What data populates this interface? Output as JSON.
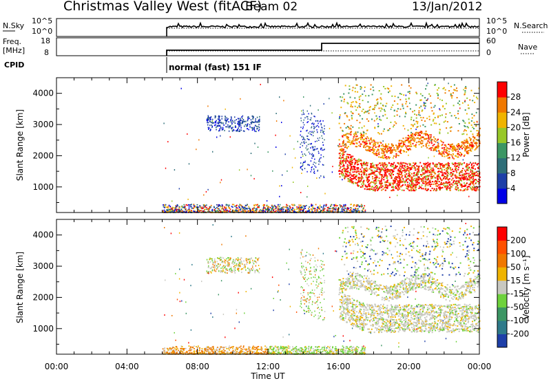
{
  "header": {
    "title": "Christmas Valley West (fitACF)",
    "beam": "Beam 02",
    "date": "13/Jan/2012"
  },
  "panels": {
    "nsky": {
      "left_label": "N.Sky",
      "left_ticks": [
        "10^5",
        "10^0"
      ],
      "right_ticks": [
        "10^5",
        "10^0"
      ],
      "right_label": "N.Search"
    },
    "freq": {
      "left_label_1": "Freq.",
      "left_label_2": "[MHz]",
      "left_ticks": [
        "18",
        "8"
      ],
      "right_ticks": [
        "60",
        "0"
      ],
      "right_label": "Nave"
    },
    "cpid": {
      "label": "CPID",
      "text": "normal (fast) 151 IF"
    }
  },
  "chart_data": [
    {
      "type": "heatmap",
      "name": "power",
      "ylabel": "Slant Range [km]",
      "yticks": [
        1000,
        2000,
        3000,
        4000
      ],
      "ylim": [
        180,
        4500
      ],
      "colorbar_label": "Power [dB]",
      "colorbar_ticks": [
        "28",
        "24",
        "20",
        "16",
        "12",
        "8",
        "4"
      ],
      "colors": [
        "#0000e6",
        "#1e3fa8",
        "#2e6e78",
        "#3c9664",
        "#98c828",
        "#f0b400",
        "#f07800",
        "#ff0000"
      ]
    },
    {
      "type": "heatmap",
      "name": "velocity",
      "ylabel": "Slant Range [km]",
      "yticks": [
        1000,
        2000,
        3000,
        4000
      ],
      "ylim": [
        180,
        4500
      ],
      "colorbar_label": "Velocity [m s⁻¹]",
      "colorbar_ticks": [
        "200",
        "100",
        "50",
        "15",
        "-15",
        "-50",
        "-100",
        "-200"
      ],
      "colors": [
        "#1e3fa8",
        "#2e7a8a",
        "#3c9664",
        "#6ed23c",
        "#c8c8c0",
        "#f0b400",
        "#f07800",
        "#ff5000",
        "#ff0000"
      ]
    }
  ],
  "xaxis": {
    "label": "Time UT",
    "ticks": [
      "00:00",
      "04:00",
      "08:00",
      "12:00",
      "16:00",
      "20:00",
      "00:00"
    ],
    "range_hours": [
      0,
      24
    ]
  }
}
